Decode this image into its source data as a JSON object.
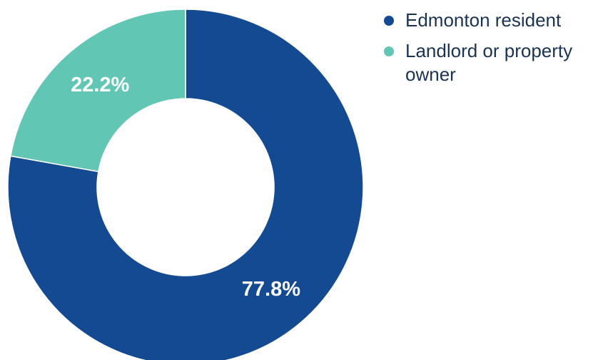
{
  "chart_data": {
    "type": "pie",
    "categories": [
      "Edmonton resident",
      "Landlord or property owner"
    ],
    "values": [
      77.8,
      22.2
    ],
    "data_labels": [
      "77.8%",
      "22.2%"
    ],
    "colors": [
      "#134a92",
      "#62c6b5"
    ],
    "donut": true,
    "legend_position": "top-right"
  }
}
